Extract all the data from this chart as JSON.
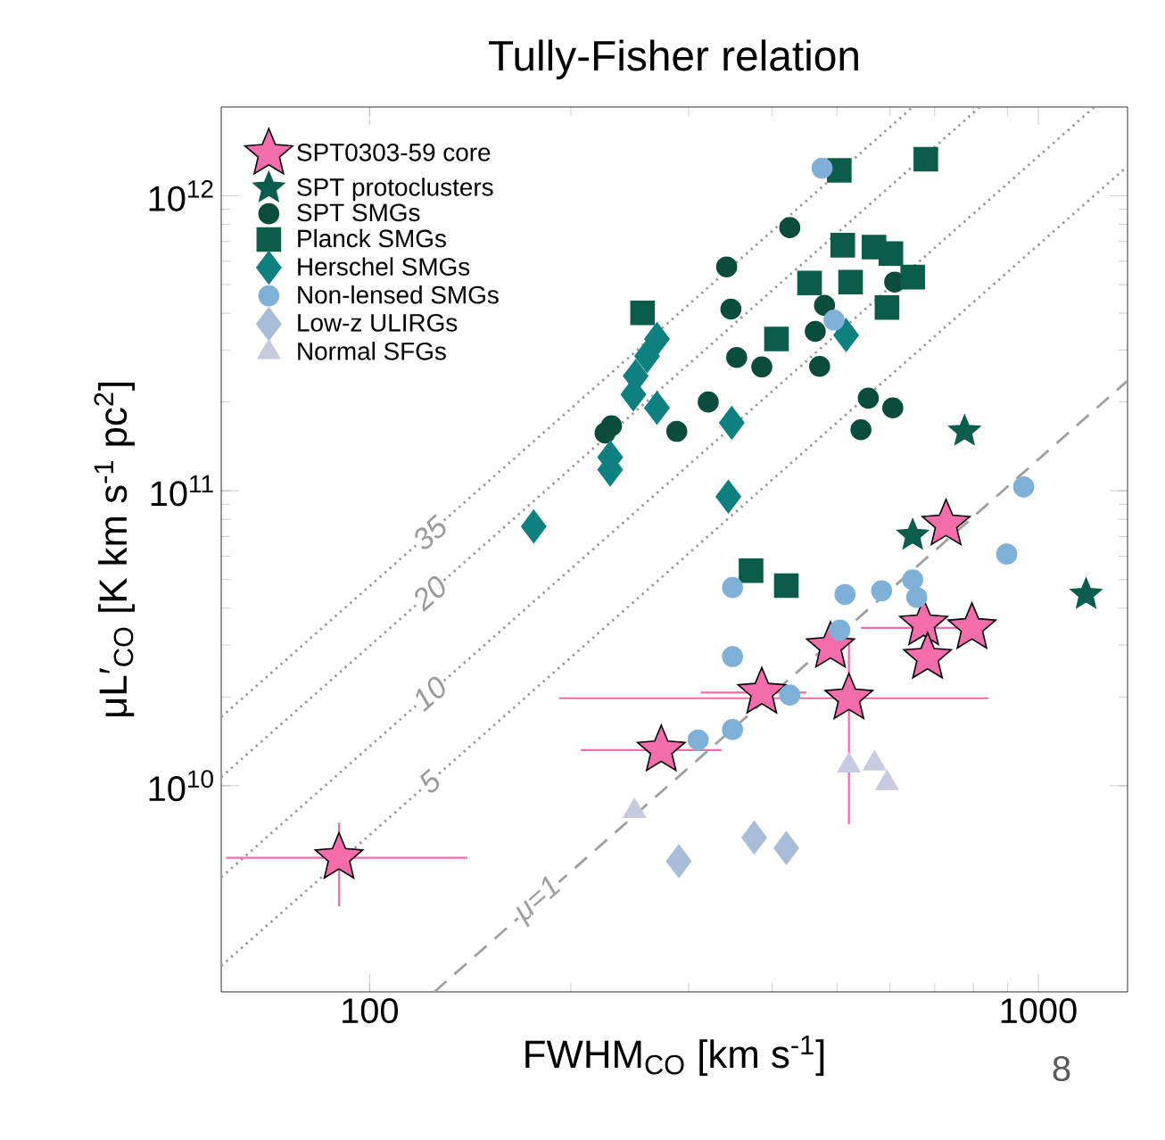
{
  "chart_data": {
    "type": "scatter",
    "title": "Tully-Fisher relation",
    "xlabel": "FWHM$_{CO}$ [km s$^{-1}$]",
    "ylabel": "μL′$_{CO}$ [K km s$^{-1}$ pc$^{2}$]",
    "log": "xy",
    "xlim": [
      60,
      1360
    ],
    "ylim": [
      2000000000.0,
      2000000000000.0
    ],
    "xticks": [
      100,
      1000
    ],
    "yticks": [
      {
        "value": 10000000000.0,
        "label": "10$^{10}$"
      },
      {
        "value": 100000000000.0,
        "label": "10$^{11}$"
      },
      {
        "value": 1000000000000.0,
        "label": "10$^{12}$"
      }
    ],
    "legend": "top left",
    "grid": false,
    "annotations": [
      "8"
    ],
    "series": [
      {
        "name": "SPT0303-59 core",
        "color": "#f26daa",
        "marker": "star",
        "x": [
          90,
          273,
          386,
          521,
          489,
          674,
          683,
          796,
          728
        ],
        "values": [
          5700000000.0,
          13200000000.0,
          20700000000.0,
          19800000000.0,
          29600000000.0,
          35300000000.0,
          27200000000.0,
          34300000000.0,
          77000000000.0
        ],
        "errors": [
          [
            3900000000.0,
            7500000000.0
          ],
          null,
          null,
          [
            7400000000.0,
            31400000000.0
          ],
          null,
          null,
          null,
          null,
          null
        ],
        "xerrors": [
          [
            61,
            140
          ],
          [
            207,
            336
          ],
          [
            313,
            450
          ],
          [
            192,
            843
          ],
          null,
          null,
          null,
          [
            543,
            826
          ],
          null
        ]
      },
      {
        "name": "SPT protoclusters",
        "color": "#0b5e4c",
        "marker": "star",
        "x": [
          776,
          649,
          1179
        ],
        "values": [
          159000000000.0,
          70600000000.0,
          44500000000.0
        ]
      },
      {
        "name": "SPT SMGs",
        "color": "#0a4d3c",
        "marker": "circle",
        "x": [
          425,
          342,
          347,
          479,
          464,
          354,
          386,
          471,
          321,
          557,
          606,
          230,
          225,
          288,
          543,
          610
        ],
        "values": [
          780000000000.0,
          574000000000.0,
          413000000000.0,
          425000000000.0,
          347000000000.0,
          283000000000.0,
          263000000000.0,
          264000000000.0,
          200000000000.0,
          206000000000.0,
          191000000000.0,
          166000000000.0,
          157000000000.0,
          159000000000.0,
          161000000000.0,
          510000000000.0
        ]
      },
      {
        "name": "Planck SMGs",
        "color": "#0b5d4a",
        "marker": "square",
        "x": [
          679,
          504,
          510,
          568,
          602,
          455,
          524,
          649,
          594,
          256,
          406,
          372,
          420
        ],
        "values": [
          1330000000000.0,
          1220000000000.0,
          680000000000.0,
          670000000000.0,
          637000000000.0,
          506000000000.0,
          510000000000.0,
          530000000000.0,
          418000000000.0,
          401000000000.0,
          327000000000.0,
          53600000000.0,
          47700000000.0
        ]
      },
      {
        "name": "Herschel SMGs",
        "color": "#0e8080",
        "marker": "diamond",
        "x": [
          269,
          260,
          250,
          248,
          269,
          348,
          229,
          229,
          176,
          344,
          516
        ],
        "values": [
          327000000000.0,
          286000000000.0,
          245000000000.0,
          212000000000.0,
          191000000000.0,
          170000000000.0,
          130000000000.0,
          118000000000.0,
          75700000000.0,
          95500000000.0,
          337000000000.0
        ]
      },
      {
        "name": "Non-lensed SMGs",
        "color": "#7fb0d8",
        "marker": "circle",
        "x": [
          475,
          495,
          951,
          897,
          349,
          514,
          583,
          649,
          658,
          505,
          349,
          425,
          349,
          310
        ],
        "values": [
          1240000000000.0,
          379000000000.0,
          103000000000.0,
          61000000000.0,
          47000000000.0,
          44500000000.0,
          45800000000.0,
          49900000000.0,
          43500000000.0,
          33700000000.0,
          27400000000.0,
          20300000000.0,
          15500000000.0,
          14300000000.0
        ]
      },
      {
        "name": "Low-z ULIRGs",
        "color": "#a9bcd9",
        "marker": "diamond",
        "x": [
          290,
          376,
          420
        ],
        "values": [
          5550000000.0,
          6670000000.0,
          6150000000.0
        ]
      },
      {
        "name": "Normal SFGs",
        "color": "#c8cadf",
        "marker": "triangle",
        "x": [
          249,
          521,
          569,
          594
        ],
        "values": [
          8200000000.0,
          11700000000.0,
          11900000000.0,
          10200000000.0
        ]
      },
      {
        "name": "35",
        "type": "line",
        "color": "#9a9a9a",
        "line_style": "dotted",
        "x": [
          60,
          649
        ],
        "values": [
          17100000000.0,
          2000000000000.0
        ]
      },
      {
        "name": "20",
        "type": "line",
        "color": "#9a9a9a",
        "line_style": "dotted",
        "x": [
          60,
          818
        ],
        "values": [
          10700000000.0,
          2000000000000.0
        ]
      },
      {
        "name": "10",
        "type": "line",
        "color": "#9a9a9a",
        "line_style": "dotted",
        "x": [
          60,
          1213
        ],
        "values": [
          4890000000.0,
          2000000000000.0
        ]
      },
      {
        "name": "5",
        "type": "line",
        "color": "#9a9a9a",
        "line_style": "dotted",
        "x": [
          60,
          1360
        ],
        "values": [
          2450000000.0,
          1260000000000.0
        ]
      },
      {
        "name": "μ=1",
        "type": "line",
        "color": "#a0a0a0",
        "line_style": "dashed",
        "x": [
          125,
          1360
        ],
        "values": [
          2000000000.0,
          236000000000.0
        ]
      }
    ]
  }
}
